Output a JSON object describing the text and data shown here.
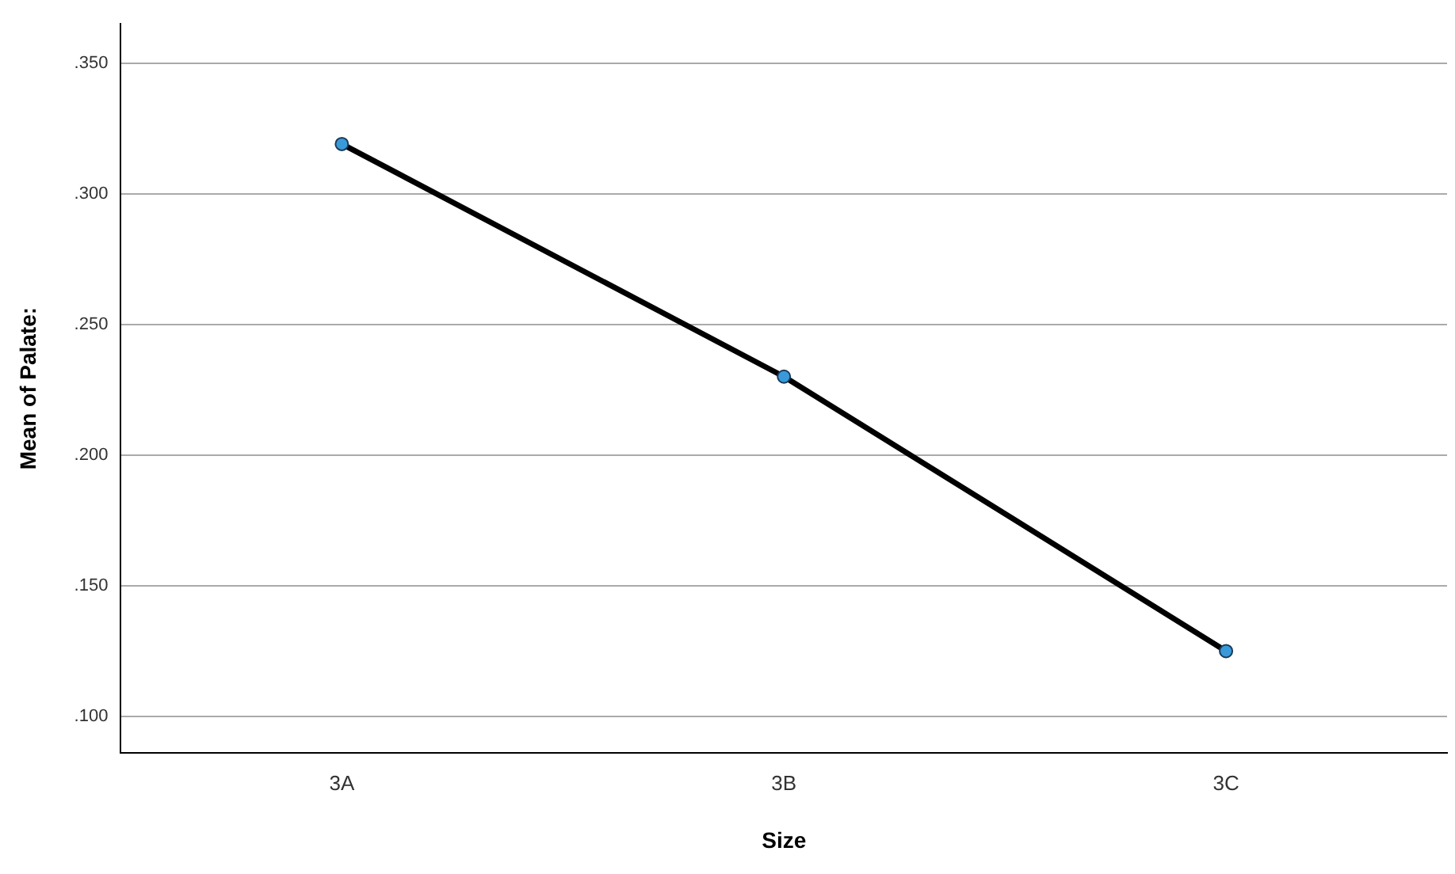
{
  "chart_data": {
    "type": "line",
    "xlabel": "Size",
    "ylabel": "Mean of Palate:",
    "categories": [
      "3A",
      "3B",
      "3C"
    ],
    "series": [
      {
        "color": "#000000",
        "values": [
          0.319,
          0.23,
          0.125
        ]
      }
    ],
    "ylim": [
      0.086,
      0.365
    ],
    "yticks": [
      {
        "value": 0.1,
        "label": ".100"
      },
      {
        "value": 0.15,
        "label": ".150"
      },
      {
        "value": 0.2,
        "label": ".200"
      },
      {
        "value": 0.25,
        "label": ".250"
      },
      {
        "value": 0.3,
        "label": ".300"
      },
      {
        "value": 0.35,
        "label": ".350"
      }
    ],
    "grid": "y",
    "legend": false,
    "marker": "circle",
    "line_style": "solid"
  }
}
